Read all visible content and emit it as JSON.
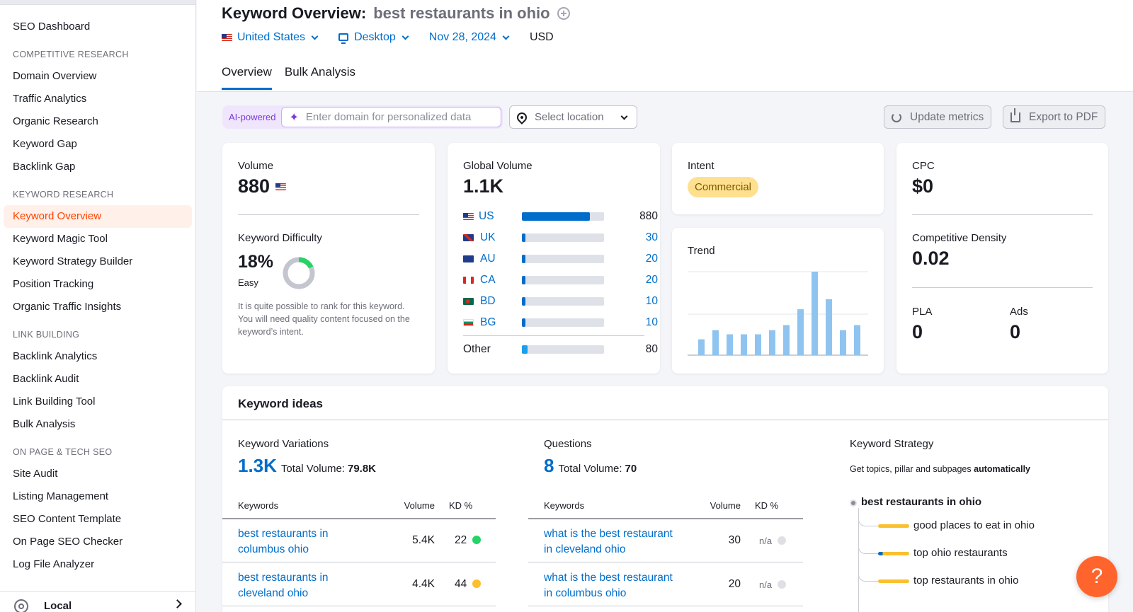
{
  "sidebar": {
    "top_item": "SEO Dashboard",
    "sections": [
      {
        "title": "COMPETITIVE RESEARCH",
        "items": [
          "Domain Overview",
          "Traffic Analytics",
          "Organic Research",
          "Keyword Gap",
          "Backlink Gap"
        ]
      },
      {
        "title": "KEYWORD RESEARCH",
        "items": [
          "Keyword Overview",
          "Keyword Magic Tool",
          "Keyword Strategy Builder",
          "Position Tracking",
          "Organic Traffic Insights"
        ]
      },
      {
        "title": "LINK BUILDING",
        "items": [
          "Backlink Analytics",
          "Backlink Audit",
          "Link Building Tool",
          "Bulk Analysis"
        ]
      },
      {
        "title": "ON PAGE & TECH SEO",
        "items": [
          "Site Audit",
          "Listing Management",
          "SEO Content Template",
          "On Page SEO Checker",
          "Log File Analyzer"
        ]
      }
    ],
    "active_item": "Keyword Overview",
    "bottom_item": "Local"
  },
  "header": {
    "title": "Keyword Overview:",
    "keyword": "best restaurants in ohio",
    "country": "United States",
    "device": "Desktop",
    "date": "Nov 28, 2024",
    "currency": "USD",
    "tabs": [
      "Overview",
      "Bulk Analysis"
    ]
  },
  "toolbar": {
    "ai_label": "AI-powered",
    "domain_placeholder": "Enter domain for personalized data",
    "location_placeholder": "Select location",
    "update_label": "Update metrics",
    "export_label": "Export to PDF"
  },
  "volume_card": {
    "label": "Volume",
    "value": "880",
    "kd_label": "Keyword Difficulty",
    "kd_value": "18%",
    "kd_level": "Easy",
    "kd_percent": 18,
    "kd_description": "It is quite possible to rank for this keyword. You will need quality content focused on the keyword’s intent."
  },
  "global_card": {
    "label": "Global Volume",
    "value": "1.1K",
    "countries": [
      {
        "code": "US",
        "value": "880",
        "share": 0.83
      },
      {
        "code": "UK",
        "value": "30",
        "share": 0.03
      },
      {
        "code": "AU",
        "value": "20",
        "share": 0.02
      },
      {
        "code": "CA",
        "value": "20",
        "share": 0.02
      },
      {
        "code": "BD",
        "value": "10",
        "share": 0.01
      },
      {
        "code": "BG",
        "value": "10",
        "share": 0.01
      }
    ],
    "other": {
      "label": "Other",
      "value": "80",
      "share": 0.07
    }
  },
  "intent_card": {
    "label": "Intent",
    "value": "Commercial"
  },
  "trend_card": {
    "label": "Trend",
    "bars": [
      0.19,
      0.3,
      0.25,
      0.25,
      0.25,
      0.3,
      0.36,
      0.55,
      1.0,
      0.67,
      0.3,
      0.36
    ]
  },
  "cpc_card": {
    "cpc_label": "CPC",
    "cpc_value": "$0",
    "density_label": "Competitive Density",
    "density_value": "0.02",
    "pla_label": "PLA",
    "pla_value": "0",
    "ads_label": "Ads",
    "ads_value": "0"
  },
  "keyword_ideas": {
    "title": "Keyword ideas",
    "variations": {
      "label": "Keyword Variations",
      "count": "1.3K",
      "total_label": "Total Volume:",
      "total_value": "79.8K",
      "headers": [
        "Keywords",
        "Volume",
        "KD %"
      ],
      "rows": [
        {
          "kw1": "best restaurants in",
          "kw2": "columbus ohio",
          "volume": "5.4K",
          "kd": "22",
          "kd_color": "#25d366"
        },
        {
          "kw1": "best restaurants in",
          "kw2": "cleveland ohio",
          "volume": "4.4K",
          "kd": "44",
          "kd_color": "#fbc02d"
        }
      ]
    },
    "questions": {
      "label": "Questions",
      "count": "8",
      "total_label": "Total Volume:",
      "total_value": "70",
      "headers": [
        "Keywords",
        "Volume",
        "KD %"
      ],
      "rows": [
        {
          "kw1": "what is the best restaurant",
          "kw2": "in cleveland ohio",
          "volume": "30",
          "kd": "n/a",
          "kd_color": "#dfe0e5"
        },
        {
          "kw1": "what is the best restaurant",
          "kw2": "in columbus ohio",
          "volume": "20",
          "kd": "n/a",
          "kd_color": "#dfe0e5"
        }
      ]
    },
    "strategy": {
      "label": "Keyword Strategy",
      "desc_start": "Get topics, pillar and subpages",
      "desc_bold": "automatically",
      "root": "best restaurants in ohio",
      "children": [
        "good places to eat in ohio",
        "top ohio restaurants",
        "top restaurants in ohio"
      ]
    }
  },
  "help_label": "?",
  "colors": {
    "accent": "#006dca",
    "brand_orange": "#ff642d",
    "active_bg": "#fff0ea",
    "trend_bar": "#8fc4f0"
  }
}
